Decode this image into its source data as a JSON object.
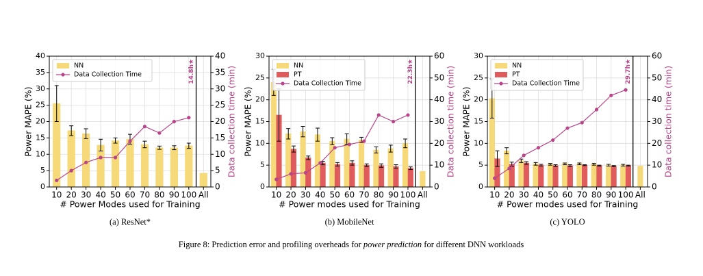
{
  "chart_data": [
    {
      "type": "bar",
      "caption": "(a) ResNet*",
      "xlabel": "# Power Modes used for Training",
      "ylabel": "Power MAPE (%)",
      "y2label": "Data collection time (min)",
      "annotation": "14.8h★",
      "categories": [
        "10",
        "20",
        "30",
        "40",
        "50",
        "60",
        "70",
        "80",
        "90",
        "100",
        "All"
      ],
      "ylim": [
        0,
        40
      ],
      "yticks": [
        0,
        5,
        10,
        15,
        20,
        25,
        30,
        35,
        40
      ],
      "y2lim": [
        0,
        40
      ],
      "y2ticks": [
        0,
        5,
        10,
        15,
        20,
        25,
        30,
        35,
        40
      ],
      "grid": true,
      "legend": "upper left",
      "series": [
        {
          "name": "NN",
          "type": "bar",
          "color": "#f6d978",
          "values": [
            25.5,
            17.2,
            16.3,
            12.8,
            14.2,
            14.6,
            13,
            12,
            12,
            12.6,
            4.2
          ],
          "errors": [
            5.5,
            1.5,
            1.5,
            1.8,
            0.8,
            1.5,
            1,
            0.5,
            0.6,
            0.8,
            null
          ]
        },
        {
          "name": "Data Collection Time",
          "type": "line",
          "axis": "y2",
          "color": "#b8458a",
          "values": [
            2,
            5,
            7.5,
            9,
            9,
            14,
            18.5,
            16.5,
            20,
            21.2,
            null
          ]
        }
      ]
    },
    {
      "type": "bar",
      "caption": "(b) MobileNet",
      "xlabel": "# Power modes used for Training",
      "ylabel": "Power MAPE (%)",
      "y2label": "Data collection time (min)",
      "annotation": "22.3h★",
      "categories": [
        "10",
        "20",
        "30",
        "40",
        "50",
        "60",
        "70",
        "80",
        "90",
        "100",
        "All"
      ],
      "ylim": [
        0,
        30
      ],
      "yticks": [
        0,
        5,
        10,
        15,
        20,
        25,
        30
      ],
      "y2lim": [
        0,
        60
      ],
      "y2ticks": [
        0,
        10,
        20,
        30,
        40,
        50,
        60
      ],
      "grid": true,
      "legend": "upper left",
      "series": [
        {
          "name": "NN",
          "type": "bar",
          "color": "#f6d978",
          "values": [
            24,
            12.2,
            12.7,
            12,
            10.5,
            11,
            10.8,
            8.5,
            8.8,
            10,
            3.6
          ],
          "errors": [
            3,
            1.2,
            1.2,
            1.5,
            0.8,
            1.2,
            0.6,
            0.7,
            0.8,
            1,
            null
          ]
        },
        {
          "name": "PT",
          "type": "bar",
          "color": "#e05b5b",
          "values": [
            16.5,
            8.7,
            6.7,
            5.5,
            5.2,
            5.5,
            5,
            4.9,
            4.7,
            4.3,
            null
          ],
          "errors": [
            6,
            0.7,
            0.4,
            0.4,
            0.4,
            0.5,
            0.3,
            0.4,
            0.4,
            0.3,
            null
          ]
        },
        {
          "name": "Data Collection Time",
          "type": "line",
          "axis": "y2",
          "color": "#b8458a",
          "values": [
            3.5,
            6,
            6.5,
            11,
            18,
            19.5,
            21,
            33,
            30,
            33,
            null
          ]
        }
      ]
    },
    {
      "type": "bar",
      "caption": "(c) YOLO",
      "xlabel": "# Power modes used for Training",
      "ylabel": "Power MAPE (%)",
      "y2label": "Data collection time (min)",
      "annotation": "29.7h★",
      "categories": [
        "10",
        "20",
        "30",
        "40",
        "50",
        "60",
        "70",
        "80",
        "90",
        "100",
        "All"
      ],
      "ylim": [
        0,
        30
      ],
      "yticks": [
        0,
        5,
        10,
        15,
        20,
        25,
        30
      ],
      "y2lim": [
        0,
        60
      ],
      "y2ticks": [
        0,
        10,
        20,
        30,
        40,
        50,
        60
      ],
      "grid": true,
      "legend": "upper left",
      "series": [
        {
          "name": "NN",
          "type": "bar",
          "color": "#f6d978",
          "values": [
            20.3,
            8.3,
            6,
            5.3,
            5.2,
            5.3,
            5.3,
            5.2,
            5,
            5,
            4.8
          ],
          "errors": [
            4.5,
            0.7,
            0.4,
            0.3,
            0.2,
            0.2,
            0.2,
            0.2,
            0.2,
            0.2,
            null
          ]
        },
        {
          "name": "PT",
          "type": "bar",
          "color": "#e05b5b",
          "values": [
            6.5,
            5.2,
            5.5,
            5,
            4.9,
            4.9,
            5,
            4.9,
            4.8,
            4.9,
            null
          ],
          "errors": [
            1.8,
            0.5,
            0.3,
            0.2,
            0.2,
            0.2,
            0.1,
            0.1,
            0.1,
            0.1,
            null
          ]
        },
        {
          "name": "Data Collection Time",
          "type": "line",
          "axis": "y2",
          "color": "#b8458a",
          "values": [
            4,
            8.5,
            14.5,
            18,
            21.5,
            27,
            29.5,
            35.5,
            42,
            44.5,
            null
          ]
        }
      ]
    }
  ],
  "figure": {
    "caption": [
      "Figure 8: Prediction error and profiling overheads for ",
      "power prediction",
      " for different DNN workloads"
    ]
  }
}
